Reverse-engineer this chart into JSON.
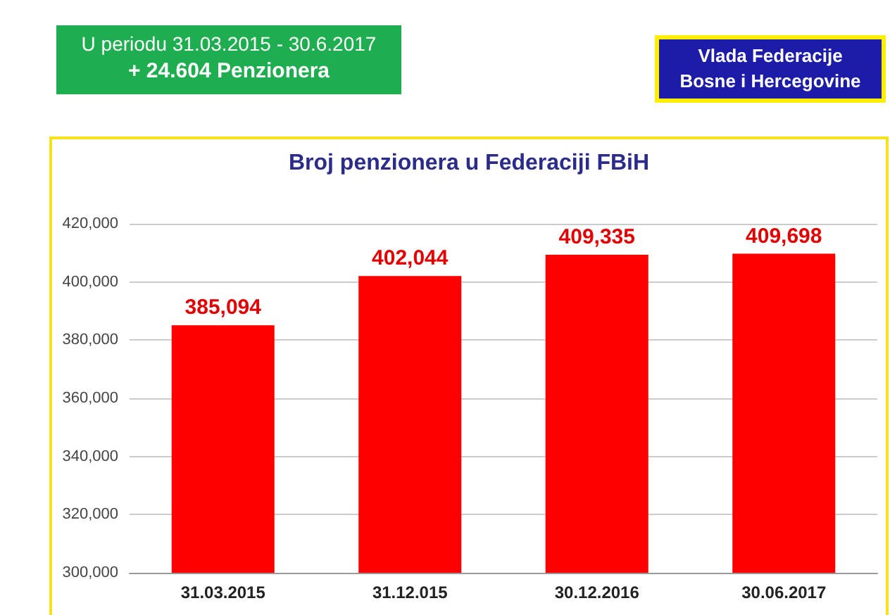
{
  "chart_data": {
    "type": "bar",
    "title": "Broj penzionera u Federaciji FBiH",
    "categories": [
      "31.03.2015",
      "31.12.015",
      "30.12.2016",
      "30.06.2017"
    ],
    "values": [
      385094,
      402044,
      409335,
      409698
    ],
    "color": "#ff0000",
    "value_labels": [
      "385,094",
      "402,044",
      "409,335",
      "409,698"
    ],
    "ylim": [
      300000,
      420000
    ],
    "yticks": [
      {
        "value": 300000,
        "label": "300,000"
      },
      {
        "value": 320000,
        "label": "320,000"
      },
      {
        "value": 340000,
        "label": "340,000"
      },
      {
        "value": 360000,
        "label": "360,000"
      },
      {
        "value": 380000,
        "label": "380,000"
      },
      {
        "value": 400000,
        "label": "400,000"
      },
      {
        "value": 420000,
        "label": "420,000"
      }
    ],
    "grid": "y",
    "annotations": [
      "U periodu 31.03.2015 - 30.6.2017",
      "+ 24.604 Penzionera",
      "Vlada Federacije Bosne i Hercegovine"
    ]
  }
}
